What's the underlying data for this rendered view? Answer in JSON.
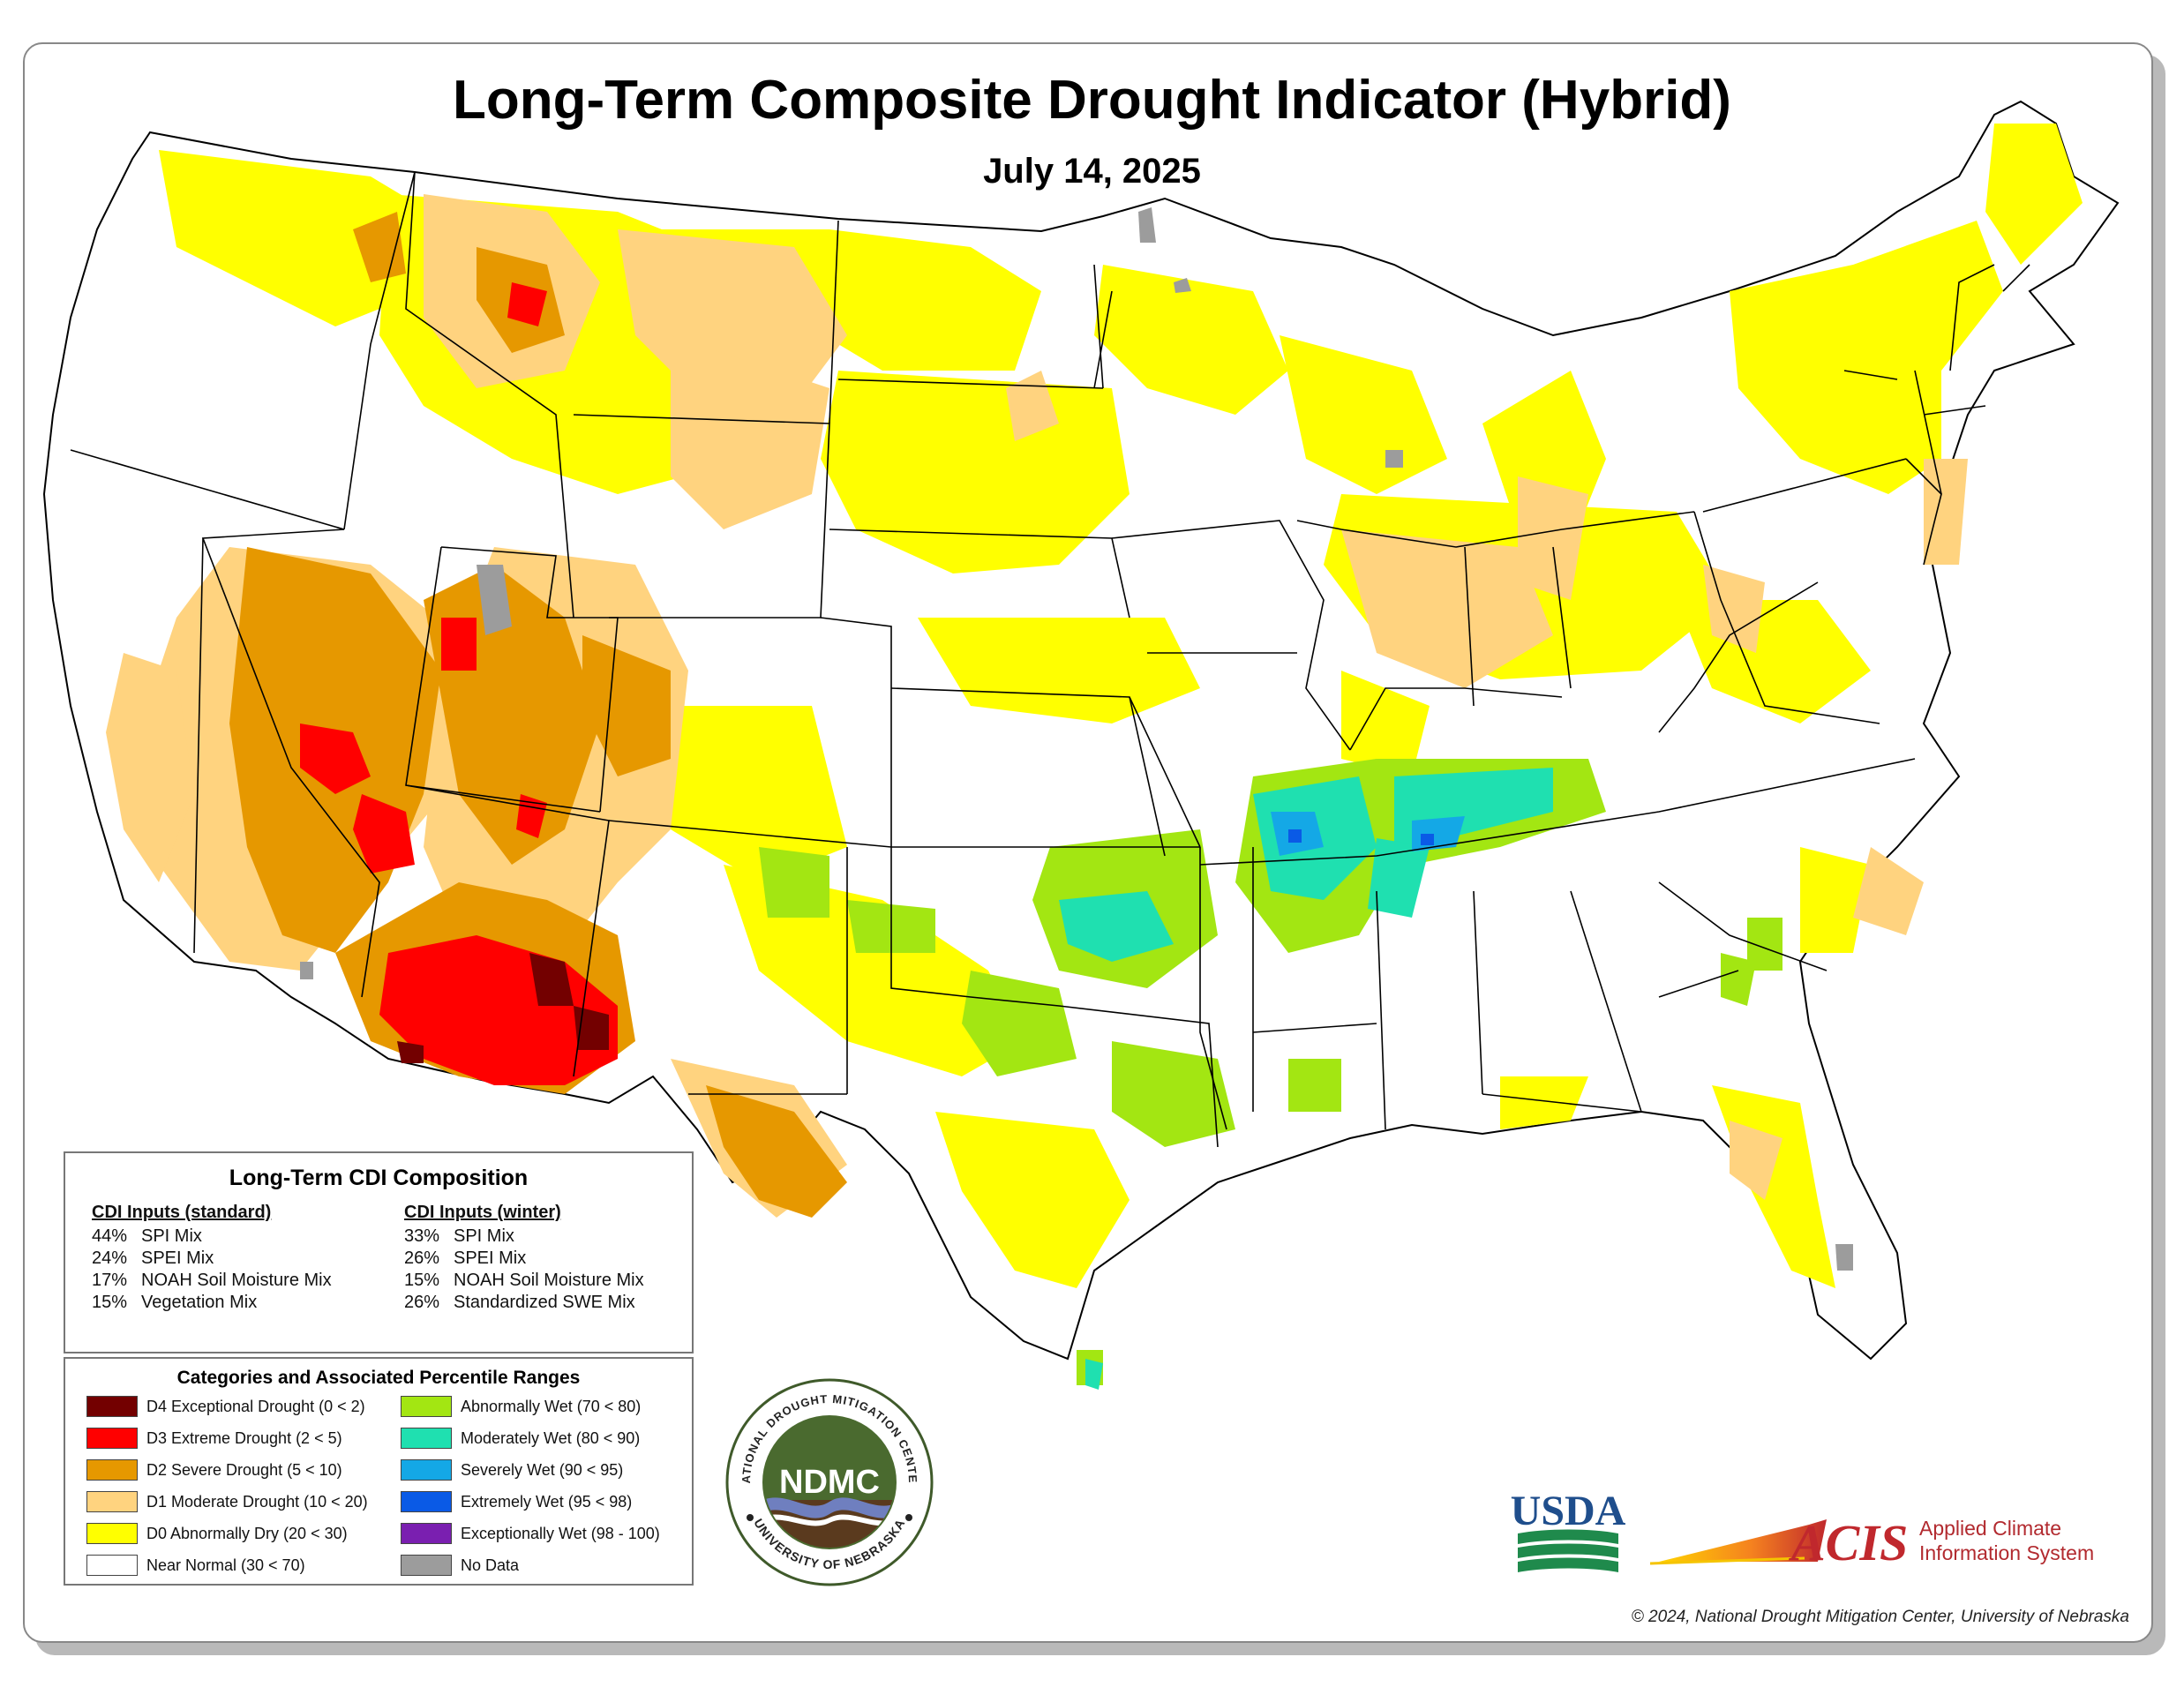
{
  "title": "Long-Term Composite Drought Indicator (Hybrid)",
  "date": "July 14, 2025",
  "composition": {
    "heading": "Long-Term CDI Composition",
    "standard": {
      "heading": "CDI Inputs (standard)",
      "rows": [
        {
          "pct": "44%",
          "name": "SPI Mix"
        },
        {
          "pct": "24%",
          "name": "SPEI Mix"
        },
        {
          "pct": "17%",
          "name": "NOAH Soil Moisture Mix"
        },
        {
          "pct": "15%",
          "name": "Vegetation Mix"
        }
      ]
    },
    "winter": {
      "heading": "CDI Inputs (winter)",
      "rows": [
        {
          "pct": "33%",
          "name": "SPI Mix"
        },
        {
          "pct": "26%",
          "name": "SPEI Mix"
        },
        {
          "pct": "15%",
          "name": "NOAH Soil Moisture Mix"
        },
        {
          "pct": "26%",
          "name": "Standardized SWE Mix"
        }
      ]
    }
  },
  "categories": {
    "heading": "Categories and Associated Percentile Ranges",
    "left": [
      {
        "label": "D4 Exceptional Drought (0 < 2)",
        "color": "#730000"
      },
      {
        "label": "D3 Extreme Drought (2 < 5)",
        "color": "#ff0000"
      },
      {
        "label": "D2 Severe Drought (5 < 10)",
        "color": "#e69800"
      },
      {
        "label": "D1 Moderate Drought (10 < 20)",
        "color": "#ffd37f"
      },
      {
        "label": "D0 Abnormally Dry (20 < 30)",
        "color": "#ffff00"
      },
      {
        "label": "Near Normal (30 < 70)",
        "color": "#ffffff"
      }
    ],
    "right": [
      {
        "label": "Abnormally Wet (70 < 80)",
        "color": "#a3e612"
      },
      {
        "label": "Moderately Wet (80 < 90)",
        "color": "#1fe0b0"
      },
      {
        "label": "Severely Wet (90 < 95)",
        "color": "#14a8e6"
      },
      {
        "label": "Extremely Wet (95 < 98)",
        "color": "#0a5ae6"
      },
      {
        "label": "Exceptionally Wet (98 - 100)",
        "color": "#7a1fb0"
      },
      {
        "label": "No Data",
        "color": "#9c9c9c"
      }
    ]
  },
  "logos": {
    "ndmc": {
      "center": "NDMC",
      "top_ring": "NATIONAL DROUGHT MITIGATION CENTER",
      "bottom_ring": "UNIVERSITY OF NEBRASKA"
    },
    "usda": "USDA",
    "acis": {
      "mark": "ACIS",
      "line1": "Applied Climate",
      "line2": "Information System"
    }
  },
  "copyright": "© 2024, National Drought Mitigation Center, University of Nebraska"
}
